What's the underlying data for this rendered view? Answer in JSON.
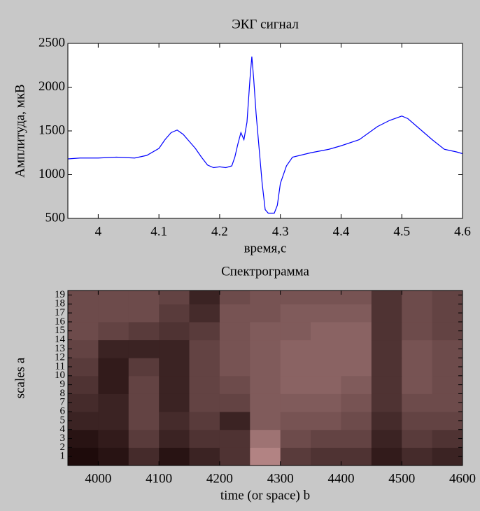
{
  "chart_data": [
    {
      "type": "line",
      "title": "ЭКГ сигнал",
      "xlabel": "время,с",
      "ylabel": "Амплитуда, мкВ",
      "x": [
        3.95,
        3.97,
        4.0,
        4.03,
        4.06,
        4.08,
        4.1,
        4.11,
        4.12,
        4.13,
        4.14,
        4.15,
        4.16,
        4.17,
        4.18,
        4.19,
        4.2,
        4.21,
        4.22,
        4.225,
        4.23,
        4.235,
        4.24,
        4.245,
        4.25,
        4.253,
        4.256,
        4.26,
        4.265,
        4.27,
        4.275,
        4.28,
        4.29,
        4.295,
        4.3,
        4.31,
        4.32,
        4.35,
        4.38,
        4.4,
        4.43,
        4.46,
        4.48,
        4.5,
        4.51,
        4.53,
        4.55,
        4.57,
        4.59,
        4.6
      ],
      "values": [
        1180,
        1190,
        1190,
        1200,
        1190,
        1220,
        1300,
        1400,
        1480,
        1510,
        1460,
        1380,
        1300,
        1200,
        1110,
        1080,
        1090,
        1080,
        1100,
        1200,
        1350,
        1480,
        1400,
        1600,
        2100,
        2350,
        2100,
        1700,
        1300,
        900,
        600,
        560,
        560,
        650,
        900,
        1100,
        1200,
        1250,
        1290,
        1330,
        1400,
        1550,
        1620,
        1670,
        1640,
        1520,
        1400,
        1290,
        1260,
        1240
      ],
      "color": "#0000ff",
      "xlim": [
        3.95,
        4.6
      ],
      "ylim": [
        500,
        2500
      ],
      "xticks": [
        4,
        4.1,
        4.2,
        4.3,
        4.4,
        4.5,
        4.6
      ],
      "yticks": [
        500,
        1000,
        1500,
        2000,
        2500
      ]
    },
    {
      "type": "heatmap",
      "title": "Спектрограмма",
      "xlabel": "time (or space) b",
      "ylabel": "scales a",
      "x": [
        3975,
        4025,
        4075,
        4125,
        4175,
        4225,
        4275,
        4325,
        4375,
        4425,
        4475,
        4525,
        4575
      ],
      "y": [
        1,
        3,
        5,
        7,
        9,
        11,
        13,
        15,
        17,
        19
      ],
      "z": [
        [
          0.05,
          0.1,
          0.25,
          0.1,
          0.2,
          0.3,
          0.8,
          0.35,
          0.3,
          0.3,
          0.15,
          0.25,
          0.2
        ],
        [
          0.1,
          0.15,
          0.35,
          0.2,
          0.3,
          0.3,
          0.7,
          0.45,
          0.4,
          0.4,
          0.2,
          0.35,
          0.3
        ],
        [
          0.2,
          0.2,
          0.4,
          0.25,
          0.35,
          0.2,
          0.55,
          0.5,
          0.5,
          0.45,
          0.25,
          0.4,
          0.4
        ],
        [
          0.25,
          0.2,
          0.4,
          0.2,
          0.4,
          0.4,
          0.55,
          0.55,
          0.55,
          0.5,
          0.3,
          0.45,
          0.45
        ],
        [
          0.3,
          0.15,
          0.4,
          0.2,
          0.4,
          0.45,
          0.55,
          0.6,
          0.6,
          0.55,
          0.3,
          0.5,
          0.45
        ],
        [
          0.35,
          0.15,
          0.35,
          0.2,
          0.4,
          0.5,
          0.55,
          0.6,
          0.6,
          0.6,
          0.3,
          0.5,
          0.45
        ],
        [
          0.4,
          0.2,
          0.2,
          0.2,
          0.4,
          0.5,
          0.55,
          0.6,
          0.6,
          0.6,
          0.3,
          0.5,
          0.45
        ],
        [
          0.45,
          0.4,
          0.35,
          0.3,
          0.35,
          0.5,
          0.55,
          0.55,
          0.6,
          0.6,
          0.3,
          0.45,
          0.4
        ],
        [
          0.45,
          0.45,
          0.45,
          0.35,
          0.25,
          0.5,
          0.5,
          0.55,
          0.55,
          0.55,
          0.3,
          0.45,
          0.4
        ],
        [
          0.45,
          0.45,
          0.45,
          0.4,
          0.2,
          0.45,
          0.5,
          0.5,
          0.5,
          0.5,
          0.3,
          0.45,
          0.4
        ]
      ],
      "colormap": [
        "#140303",
        "#d9a3a3"
      ],
      "xlim": [
        3950,
        4600
      ],
      "ylim": [
        0,
        19.5
      ],
      "xticks": [
        4000,
        4100,
        4200,
        4300,
        4400,
        4500,
        4600
      ],
      "yticks": [
        1,
        2,
        3,
        4,
        5,
        6,
        7,
        8,
        9,
        10,
        11,
        12,
        13,
        14,
        15,
        16,
        17,
        18,
        19
      ]
    }
  ]
}
